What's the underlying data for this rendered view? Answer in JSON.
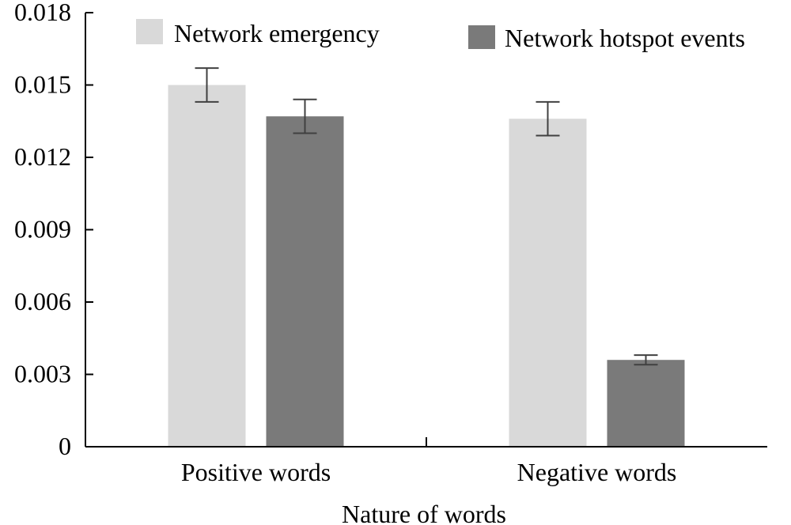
{
  "chart_data": {
    "type": "bar",
    "title": "",
    "xlabel": "Nature of words",
    "ylabel": "",
    "categories": [
      "Positive words",
      "Negative words"
    ],
    "ylim": [
      0,
      0.018
    ],
    "yticks": [
      "0",
      "0.003",
      "0.006",
      "0.009",
      "0.012",
      "0.015",
      "0.018"
    ],
    "grid": false,
    "legend_position": "top",
    "series": [
      {
        "name": "Network emergency",
        "color": "#d9d9d9",
        "values": [
          0.015,
          0.0136
        ],
        "errors": [
          0.0007,
          0.0007
        ]
      },
      {
        "name": "Network hotspot events",
        "color": "#7a7a7a",
        "values": [
          0.0137,
          0.0036
        ],
        "errors": [
          0.0007,
          0.0002
        ]
      }
    ]
  }
}
